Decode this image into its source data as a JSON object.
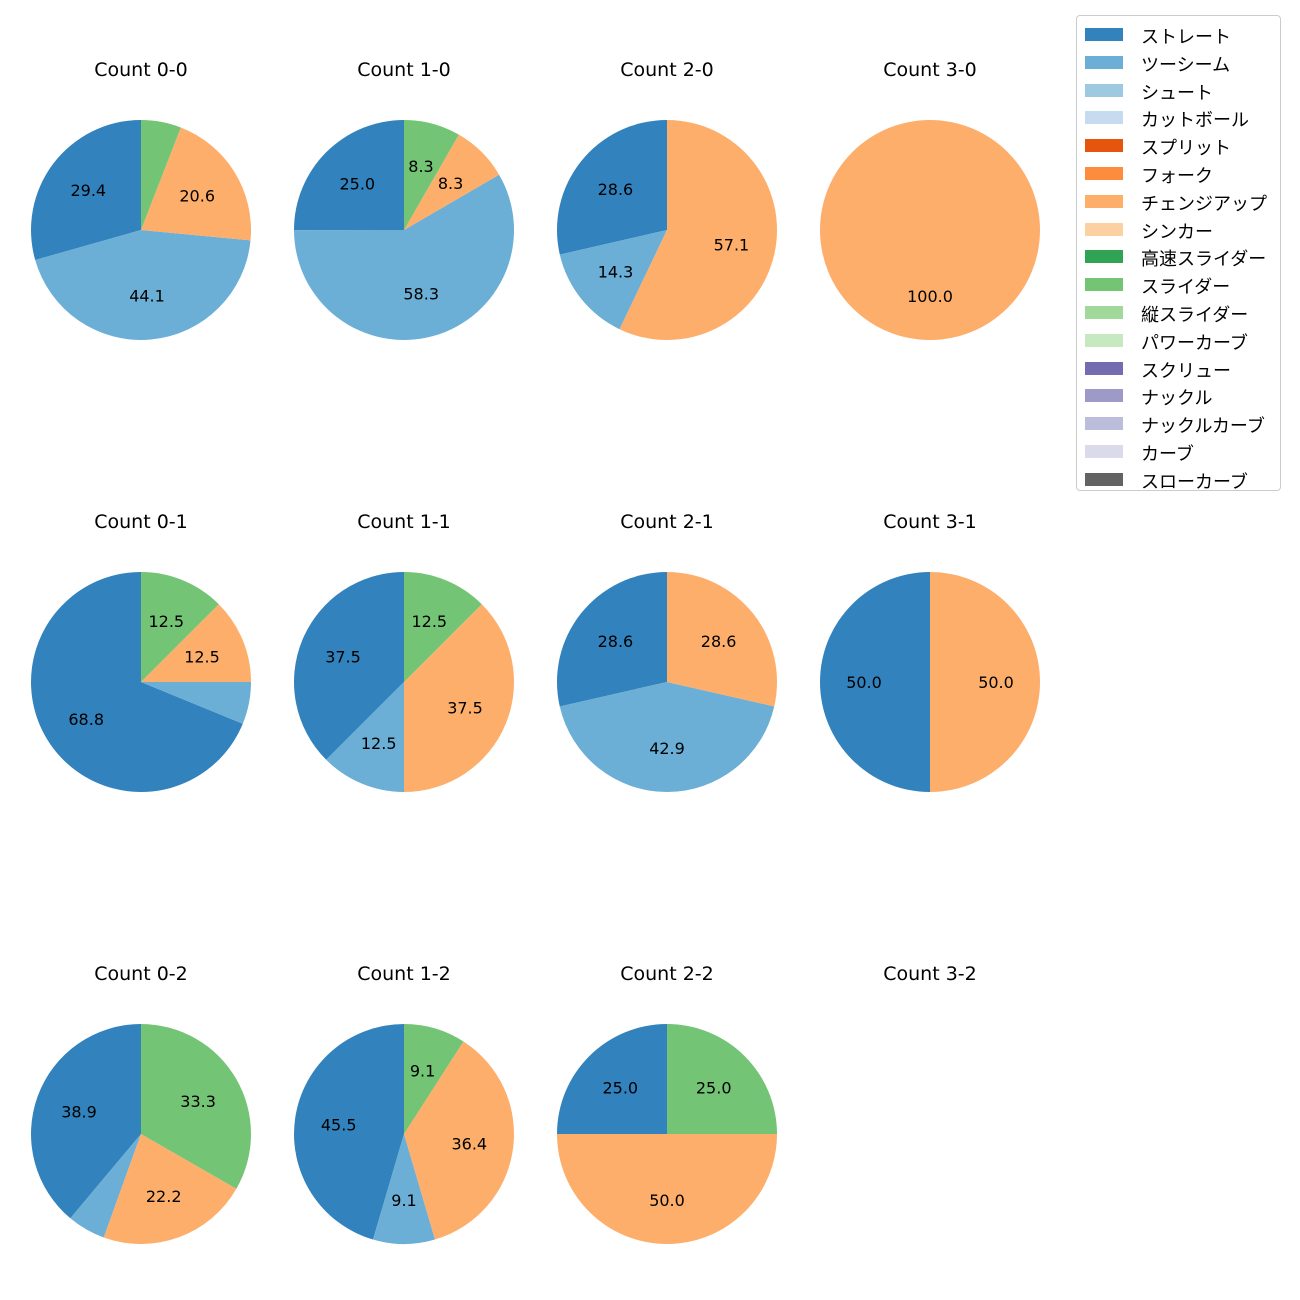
{
  "legend": {
    "items": [
      {
        "label": "ストレート",
        "color": "#3182bd"
      },
      {
        "label": "ツーシーム",
        "color": "#6baed6"
      },
      {
        "label": "シュート",
        "color": "#9ecae1"
      },
      {
        "label": "カットボール",
        "color": "#c6dbef"
      },
      {
        "label": "スプリット",
        "color": "#e6550d"
      },
      {
        "label": "フォーク",
        "color": "#fd8d3c"
      },
      {
        "label": "チェンジアップ",
        "color": "#fdae6b"
      },
      {
        "label": "シンカー",
        "color": "#fdd0a2"
      },
      {
        "label": "高速スライダー",
        "color": "#31a354"
      },
      {
        "label": "スライダー",
        "color": "#74c476"
      },
      {
        "label": "縦スライダー",
        "color": "#a1d99b"
      },
      {
        "label": "パワーカーブ",
        "color": "#c7e9c0"
      },
      {
        "label": "スクリュー",
        "color": "#756bb1"
      },
      {
        "label": "ナックル",
        "color": "#9e9ac8"
      },
      {
        "label": "ナックルカーブ",
        "color": "#bcbddc"
      },
      {
        "label": "カーブ",
        "color": "#dadaeb"
      },
      {
        "label": "スローカーブ",
        "color": "#636363"
      }
    ]
  },
  "chart_data": [
    {
      "type": "pie",
      "title": "Count 0-0",
      "slices": [
        {
          "pitch": "ストレート",
          "value": 29.4,
          "label": "29.4"
        },
        {
          "pitch": "ツーシーム",
          "value": 44.1,
          "label": "44.1"
        },
        {
          "pitch": "チェンジアップ",
          "value": 20.6,
          "label": "20.6"
        },
        {
          "pitch": "スライダー",
          "value": 5.9,
          "label": ""
        }
      ]
    },
    {
      "type": "pie",
      "title": "Count 1-0",
      "slices": [
        {
          "pitch": "ストレート",
          "value": 25.0,
          "label": "25.0"
        },
        {
          "pitch": "ツーシーム",
          "value": 58.3,
          "label": "58.3"
        },
        {
          "pitch": "チェンジアップ",
          "value": 8.3,
          "label": "8.3"
        },
        {
          "pitch": "スライダー",
          "value": 8.3,
          "label": "8.3"
        }
      ]
    },
    {
      "type": "pie",
      "title": "Count 2-0",
      "slices": [
        {
          "pitch": "ストレート",
          "value": 28.6,
          "label": "28.6"
        },
        {
          "pitch": "ツーシーム",
          "value": 14.3,
          "label": "14.3"
        },
        {
          "pitch": "チェンジアップ",
          "value": 57.1,
          "label": "57.1"
        }
      ]
    },
    {
      "type": "pie",
      "title": "Count 3-0",
      "slices": [
        {
          "pitch": "チェンジアップ",
          "value": 100.0,
          "label": "100.0"
        }
      ]
    },
    {
      "type": "pie",
      "title": "Count 0-1",
      "slices": [
        {
          "pitch": "ストレート",
          "value": 68.8,
          "label": "68.8"
        },
        {
          "pitch": "ツーシーム",
          "value": 6.2,
          "label": ""
        },
        {
          "pitch": "チェンジアップ",
          "value": 12.5,
          "label": "12.5"
        },
        {
          "pitch": "スライダー",
          "value": 12.5,
          "label": "12.5"
        }
      ]
    },
    {
      "type": "pie",
      "title": "Count 1-1",
      "slices": [
        {
          "pitch": "ストレート",
          "value": 37.5,
          "label": "37.5"
        },
        {
          "pitch": "ツーシーム",
          "value": 12.5,
          "label": "12.5"
        },
        {
          "pitch": "チェンジアップ",
          "value": 37.5,
          "label": "37.5"
        },
        {
          "pitch": "スライダー",
          "value": 12.5,
          "label": "12.5"
        }
      ]
    },
    {
      "type": "pie",
      "title": "Count 2-1",
      "slices": [
        {
          "pitch": "ストレート",
          "value": 28.6,
          "label": "28.6"
        },
        {
          "pitch": "ツーシーム",
          "value": 42.9,
          "label": "42.9"
        },
        {
          "pitch": "チェンジアップ",
          "value": 28.6,
          "label": "28.6"
        }
      ]
    },
    {
      "type": "pie",
      "title": "Count 3-1",
      "slices": [
        {
          "pitch": "ストレート",
          "value": 50.0,
          "label": "50.0"
        },
        {
          "pitch": "チェンジアップ",
          "value": 50.0,
          "label": "50.0"
        }
      ]
    },
    {
      "type": "pie",
      "title": "Count 0-2",
      "slices": [
        {
          "pitch": "ストレート",
          "value": 38.9,
          "label": "38.9"
        },
        {
          "pitch": "ツーシーム",
          "value": 5.6,
          "label": ""
        },
        {
          "pitch": "チェンジアップ",
          "value": 22.2,
          "label": "22.2"
        },
        {
          "pitch": "スライダー",
          "value": 33.3,
          "label": "33.3"
        }
      ]
    },
    {
      "type": "pie",
      "title": "Count 1-2",
      "slices": [
        {
          "pitch": "ストレート",
          "value": 45.5,
          "label": "45.5"
        },
        {
          "pitch": "ツーシーム",
          "value": 9.1,
          "label": "9.1"
        },
        {
          "pitch": "チェンジアップ",
          "value": 36.4,
          "label": "36.4"
        },
        {
          "pitch": "スライダー",
          "value": 9.1,
          "label": "9.1"
        }
      ]
    },
    {
      "type": "pie",
      "title": "Count 2-2",
      "slices": [
        {
          "pitch": "ストレート",
          "value": 25.0,
          "label": "25.0"
        },
        {
          "pitch": "チェンジアップ",
          "value": 50.0,
          "label": "50.0"
        },
        {
          "pitch": "スライダー",
          "value": 25.0,
          "label": "25.0"
        }
      ]
    },
    {
      "type": "pie",
      "title": "Count 3-2",
      "slices": []
    }
  ]
}
